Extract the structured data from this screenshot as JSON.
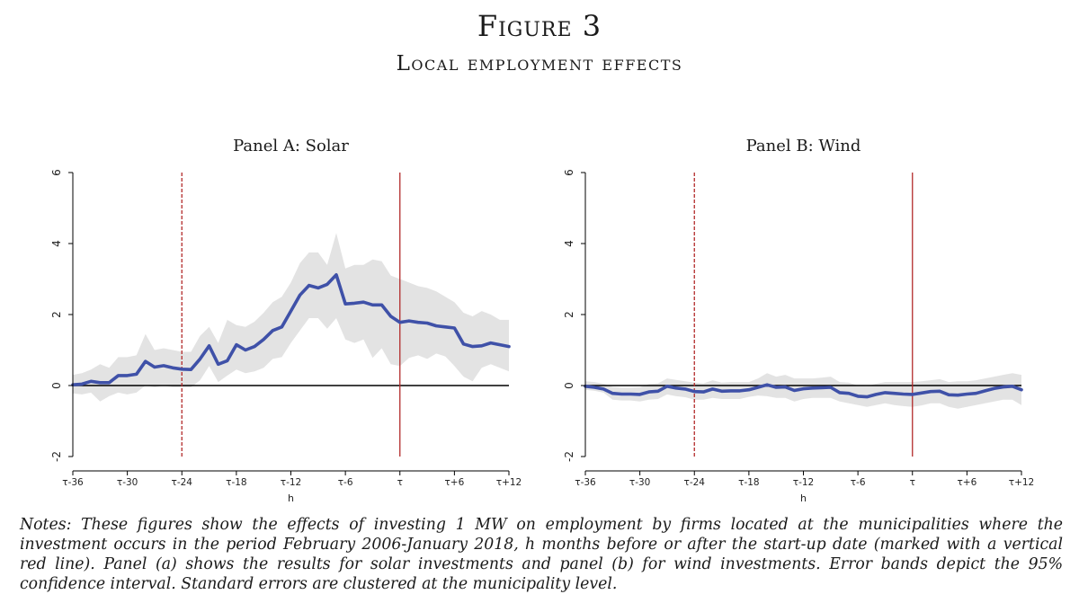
{
  "figure": {
    "title": "Figure 3",
    "subtitle": "Local employment effects"
  },
  "notes": {
    "label": "Notes:",
    "text": "These figures show the effects of investing 1 MW on employment by firms located at the municipalities where the investment occurs in the period February 2006-January 2018, h months before or after the start-up date (marked with a vertical red line). Panel (a) shows the results for solar investments and panel (b) for wind investments. Error bands depict the 95% confidence interval. Standard errors are clustered at the municipality level."
  },
  "colors": {
    "line": "#3f51a8",
    "band": "#e3e3e3",
    "vline": "#b22a2a",
    "zero": "#000000"
  },
  "chart_data": [
    {
      "type": "line",
      "title": "Panel A: Solar",
      "xlabel": "h",
      "ylabel": "",
      "xlim": [
        -36,
        12
      ],
      "ylim": [
        -2,
        6
      ],
      "yticks": [
        -2,
        0,
        2,
        4,
        6
      ],
      "xticks": [
        -36,
        -30,
        -24,
        -18,
        -12,
        -6,
        0,
        6,
        12
      ],
      "xtick_labels": [
        "τ-36",
        "τ-30",
        "τ-24",
        "τ-18",
        "τ-12",
        "τ-6",
        "τ",
        "τ+6",
        "τ+12"
      ],
      "vlines": [
        {
          "x": -24,
          "style": "dashed"
        },
        {
          "x": 0,
          "style": "solid"
        }
      ],
      "hline": 0,
      "grid": false,
      "series": [
        {
          "x": [
            -36,
            -35,
            -34,
            -33,
            -32,
            -31,
            -30,
            -29,
            -28,
            -27,
            -26,
            -25,
            -24,
            -23,
            -22,
            -21,
            -20,
            -19,
            -18,
            -17,
            -16,
            -15,
            -14,
            -13,
            -12,
            -11,
            -10,
            -9,
            -8,
            -7,
            -6,
            -5,
            -4,
            -3,
            -2,
            -1,
            0,
            1,
            2,
            3,
            4,
            5,
            6,
            7,
            8,
            9,
            10,
            11,
            12
          ],
          "y": [
            0.02,
            0.04,
            0.12,
            0.08,
            0.08,
            0.28,
            0.28,
            0.32,
            0.68,
            0.52,
            0.56,
            0.5,
            0.46,
            0.45,
            0.75,
            1.12,
            0.6,
            0.7,
            1.15,
            1.0,
            1.1,
            1.3,
            1.55,
            1.65,
            2.1,
            2.55,
            2.82,
            2.75,
            2.85,
            3.12,
            2.3,
            2.32,
            2.35,
            2.27,
            2.27,
            1.95,
            1.78,
            1.82,
            1.78,
            1.76,
            1.68,
            1.65,
            1.62,
            1.17,
            1.1,
            1.12,
            1.2,
            1.15,
            1.1
          ],
          "lower": [
            -0.22,
            -0.25,
            -0.2,
            -0.45,
            -0.3,
            -0.2,
            -0.25,
            -0.2,
            0.0,
            -0.05,
            0.0,
            -0.05,
            -0.05,
            -0.05,
            0.15,
            0.55,
            0.1,
            0.28,
            0.45,
            0.35,
            0.4,
            0.5,
            0.75,
            0.8,
            1.2,
            1.55,
            1.9,
            1.9,
            1.6,
            1.9,
            1.3,
            1.2,
            1.3,
            0.78,
            1.05,
            0.6,
            0.55,
            0.78,
            0.85,
            0.75,
            0.9,
            0.82,
            0.55,
            0.25,
            0.12,
            0.5,
            0.6,
            0.5,
            0.4
          ],
          "upper": [
            0.3,
            0.35,
            0.45,
            0.6,
            0.5,
            0.8,
            0.8,
            0.85,
            1.45,
            1.0,
            1.05,
            1.0,
            0.95,
            0.95,
            1.4,
            1.65,
            1.2,
            1.85,
            1.7,
            1.65,
            1.8,
            2.05,
            2.35,
            2.5,
            2.9,
            3.45,
            3.75,
            3.75,
            3.4,
            4.3,
            3.3,
            3.4,
            3.4,
            3.55,
            3.5,
            3.1,
            3.0,
            2.9,
            2.8,
            2.75,
            2.65,
            2.5,
            2.35,
            2.05,
            1.95,
            2.1,
            2.0,
            1.85,
            1.85
          ]
        }
      ]
    },
    {
      "type": "line",
      "title": "Panel B: Wind",
      "xlabel": "h",
      "ylabel": "",
      "xlim": [
        -36,
        12
      ],
      "ylim": [
        -2,
        6
      ],
      "yticks": [
        -2,
        0,
        2,
        4,
        6
      ],
      "xticks": [
        -36,
        -30,
        -24,
        -18,
        -12,
        -6,
        0,
        6,
        12
      ],
      "xtick_labels": [
        "τ-36",
        "τ-30",
        "τ-24",
        "τ-18",
        "τ-12",
        "τ-6",
        "τ",
        "τ+6",
        "τ+12"
      ],
      "vlines": [
        {
          "x": -24,
          "style": "dashed"
        },
        {
          "x": 0,
          "style": "solid"
        }
      ],
      "hline": 0,
      "grid": false,
      "series": [
        {
          "x": [
            -36,
            -35,
            -34,
            -33,
            -32,
            -31,
            -30,
            -29,
            -28,
            -27,
            -26,
            -25,
            -24,
            -23,
            -22,
            -21,
            -20,
            -19,
            -18,
            -17,
            -16,
            -15,
            -14,
            -13,
            -12,
            -11,
            -10,
            -9,
            -8,
            -7,
            -6,
            -5,
            -4,
            -3,
            -2,
            -1,
            0,
            1,
            2,
            3,
            4,
            5,
            6,
            7,
            8,
            9,
            10,
            11,
            12
          ],
          "y": [
            -0.02,
            -0.05,
            -0.1,
            -0.22,
            -0.24,
            -0.24,
            -0.25,
            -0.18,
            -0.16,
            -0.02,
            -0.07,
            -0.1,
            -0.17,
            -0.18,
            -0.1,
            -0.16,
            -0.15,
            -0.15,
            -0.12,
            -0.05,
            0.02,
            -0.05,
            -0.04,
            -0.14,
            -0.09,
            -0.07,
            -0.06,
            -0.05,
            -0.2,
            -0.22,
            -0.3,
            -0.32,
            -0.25,
            -0.2,
            -0.22,
            -0.24,
            -0.25,
            -0.21,
            -0.17,
            -0.16,
            -0.26,
            -0.27,
            -0.24,
            -0.22,
            -0.15,
            -0.08,
            -0.04,
            -0.02,
            -0.12
          ],
          "lower": [
            -0.12,
            -0.15,
            -0.2,
            -0.4,
            -0.42,
            -0.42,
            -0.45,
            -0.4,
            -0.38,
            -0.25,
            -0.3,
            -0.33,
            -0.4,
            -0.4,
            -0.35,
            -0.38,
            -0.38,
            -0.38,
            -0.32,
            -0.28,
            -0.3,
            -0.35,
            -0.35,
            -0.45,
            -0.38,
            -0.35,
            -0.35,
            -0.35,
            -0.45,
            -0.5,
            -0.55,
            -0.6,
            -0.55,
            -0.5,
            -0.55,
            -0.58,
            -0.6,
            -0.56,
            -0.5,
            -0.5,
            -0.6,
            -0.65,
            -0.6,
            -0.55,
            -0.5,
            -0.45,
            -0.4,
            -0.4,
            -0.55
          ],
          "upper": [
            0.12,
            0.1,
            0.05,
            -0.04,
            -0.06,
            -0.06,
            -0.05,
            0.04,
            0.06,
            0.2,
            0.16,
            0.12,
            0.08,
            0.06,
            0.15,
            0.08,
            0.1,
            0.1,
            0.1,
            0.2,
            0.35,
            0.25,
            0.3,
            0.2,
            0.2,
            0.2,
            0.22,
            0.25,
            0.1,
            0.08,
            0.0,
            -0.02,
            0.05,
            0.1,
            0.1,
            0.1,
            0.1,
            0.12,
            0.15,
            0.18,
            0.1,
            0.12,
            0.12,
            0.15,
            0.2,
            0.25,
            0.3,
            0.35,
            0.3
          ]
        }
      ]
    }
  ]
}
